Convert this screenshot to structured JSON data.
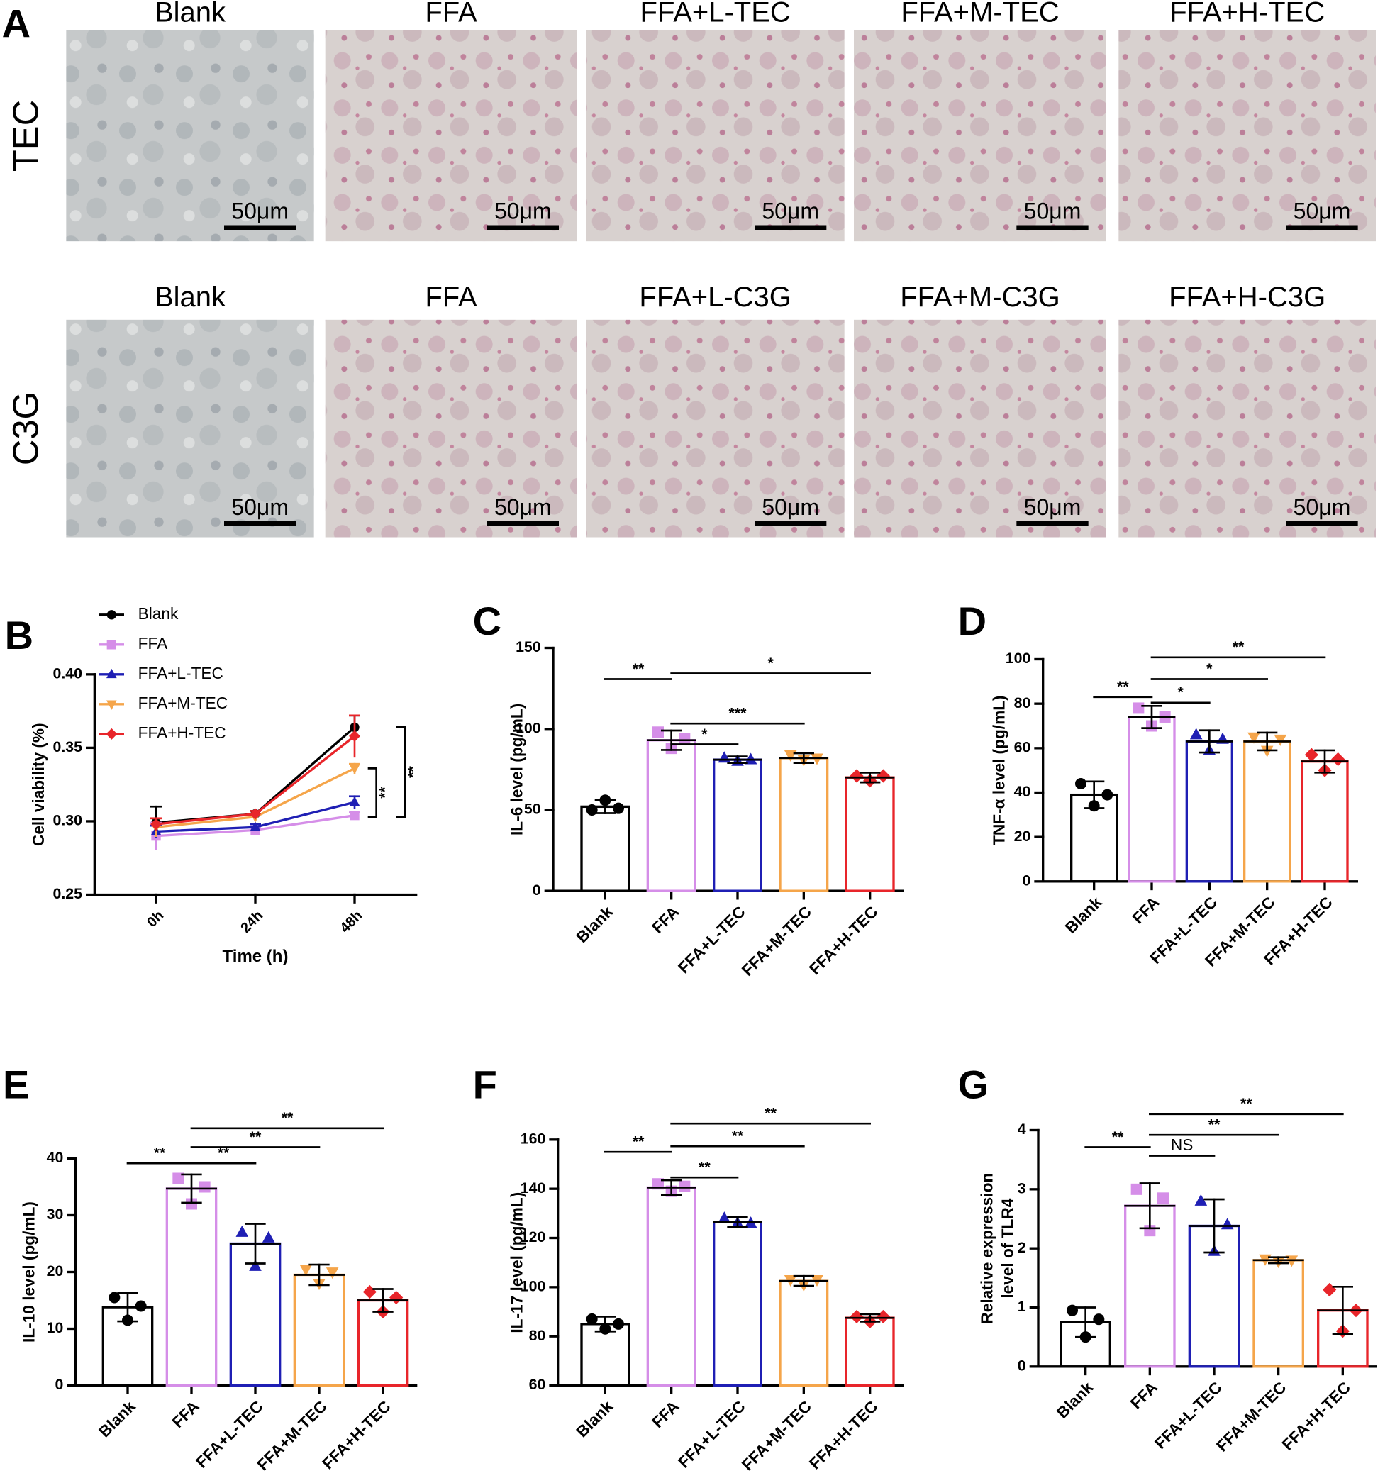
{
  "panel_a": {
    "label": "A",
    "scale_bar": "50μm",
    "rows": [
      {
        "name": "TEC",
        "columns": [
          "Blank",
          "FFA",
          "FFA+L-TEC",
          "FFA+M-TEC",
          "FFA+H-TEC"
        ]
      },
      {
        "name": "C3G",
        "columns": [
          "Blank",
          "FFA",
          "FFA+L-C3G",
          "FFA+M-C3G",
          "FFA+H-C3G"
        ]
      }
    ]
  },
  "chart_data": [
    {
      "type": "line",
      "label": "B",
      "ylabel": [
        "Cell viability (%)"
      ],
      "xlabel": "Time (h)",
      "categories": [
        "0h",
        "24h",
        "48h"
      ],
      "ylim": [
        0.25,
        0.4
      ],
      "yticks": [
        {
          "value": 0.25,
          "label": "0.25"
        },
        {
          "value": 0.3,
          "label": "0.30"
        },
        {
          "value": 0.35,
          "label": "0.35"
        },
        {
          "value": 0.4,
          "label": "0.40"
        }
      ],
      "legend": "top-left",
      "series": [
        {
          "name": "Blank",
          "color": "#000000",
          "marker": "circle",
          "values": [
            0.299,
            0.305,
            0.364
          ],
          "errors": [
            0.011,
            0.002,
            0.008
          ]
        },
        {
          "name": "FFA",
          "color": "#d58ee8",
          "marker": "square",
          "values": [
            0.29,
            0.294,
            0.304
          ],
          "errors": [
            0.009,
            0.002,
            0.002
          ]
        },
        {
          "name": "FFA+L-TEC",
          "color": "#1f1fb4",
          "marker": "triangle",
          "values": [
            0.293,
            0.296,
            0.313
          ],
          "errors": [
            0.004,
            0.002,
            0.004
          ]
        },
        {
          "name": "FFA+M-TEC",
          "color": "#f5a54a",
          "marker": "triangle-down",
          "values": [
            0.296,
            0.303,
            0.336
          ],
          "errors": [
            0.006,
            0.002,
            0.003
          ]
        },
        {
          "name": "FFA+H-TEC",
          "color": "#e8252a",
          "marker": "diamond",
          "values": [
            0.298,
            0.305,
            0.358
          ],
          "errors": [
            0.004,
            0.002,
            0.014
          ]
        }
      ],
      "brackets": [
        {
          "label": "**",
          "range": [
            0.303,
            0.336
          ]
        },
        {
          "label": "**",
          "range": [
            0.303,
            0.364
          ]
        }
      ]
    },
    {
      "type": "bar",
      "label": "C",
      "ylabel": [
        "IL-6 level (pg/mL)"
      ],
      "categories": [
        "Blank",
        "FFA",
        "FFA+L-TEC",
        "FFA+M-TEC",
        "FFA+H-TEC"
      ],
      "colors": [
        "#000000",
        "#d58ee8",
        "#1f1fb4",
        "#f5a54a",
        "#e8252a"
      ],
      "markers": [
        "circle",
        "square",
        "triangle",
        "triangle-down",
        "diamond"
      ],
      "ylim": [
        0,
        150
      ],
      "yticks": [
        0,
        50,
        100,
        150
      ],
      "values": [
        52,
        93,
        81,
        82,
        70
      ],
      "errors": [
        4,
        6,
        2,
        3,
        3
      ],
      "points": [
        [
          50,
          56,
          51
        ],
        [
          98,
          88,
          94
        ],
        [
          82,
          80,
          81
        ],
        [
          84,
          81,
          82
        ],
        [
          71,
          68,
          71
        ]
      ],
      "significance": [
        {
          "label": "**",
          "from": "Blank",
          "to": "FFA"
        },
        {
          "label": "*",
          "from": "FFA",
          "to": "FFA+L-TEC"
        },
        {
          "label": "***",
          "from": "FFA",
          "to": "FFA+M-TEC"
        },
        {
          "label": "*",
          "from": "FFA",
          "to": "FFA+H-TEC"
        }
      ]
    },
    {
      "type": "bar",
      "label": "D",
      "ylabel": [
        "TNF-α level (pg/mL)"
      ],
      "categories": [
        "Blank",
        "FFA",
        "FFA+L-TEC",
        "FFA+M-TEC",
        "FFA+H-TEC"
      ],
      "colors": [
        "#000000",
        "#d58ee8",
        "#1f1fb4",
        "#f5a54a",
        "#e8252a"
      ],
      "markers": [
        "circle",
        "square",
        "triangle",
        "triangle-down",
        "diamond"
      ],
      "ylim": [
        0,
        100
      ],
      "yticks": [
        0,
        20,
        40,
        60,
        80,
        100
      ],
      "values": [
        39,
        74,
        63,
        63,
        54
      ],
      "errors": [
        6,
        5,
        5,
        4,
        5
      ],
      "points": [
        [
          44,
          34,
          39
        ],
        [
          78,
          70,
          74
        ],
        [
          66,
          59,
          64
        ],
        [
          65,
          59,
          64
        ],
        [
          57,
          50,
          55
        ]
      ],
      "significance": [
        {
          "label": "**",
          "from": "Blank",
          "to": "FFA"
        },
        {
          "label": "*",
          "from": "FFA",
          "to": "FFA+L-TEC"
        },
        {
          "label": "*",
          "from": "FFA",
          "to": "FFA+M-TEC"
        },
        {
          "label": "**",
          "from": "FFA",
          "to": "FFA+H-TEC"
        }
      ]
    },
    {
      "type": "bar",
      "label": "E",
      "ylabel": [
        "IL-10 level (pg/mL)"
      ],
      "categories": [
        "Blank",
        "FFA",
        "FFA+L-TEC",
        "FFA+M-TEC",
        "FFA+H-TEC"
      ],
      "colors": [
        "#000000",
        "#d58ee8",
        "#1f1fb4",
        "#f5a54a",
        "#e8252a"
      ],
      "markers": [
        "circle",
        "square",
        "triangle",
        "triangle-down",
        "diamond"
      ],
      "ylim": [
        0,
        40
      ],
      "yticks": [
        0,
        10,
        20,
        30,
        40
      ],
      "values": [
        13.8,
        34.7,
        25,
        19.5,
        15
      ],
      "errors": [
        2.5,
        2.5,
        3.5,
        1.8,
        2
      ],
      "points": [
        [
          15.5,
          11.5,
          14
        ],
        [
          36.5,
          32,
          35
        ],
        [
          27,
          21,
          26
        ],
        [
          20.5,
          18,
          20
        ],
        [
          16.5,
          13,
          15.5
        ]
      ],
      "significance": [
        {
          "label": "**",
          "from": "Blank",
          "to": "FFA"
        },
        {
          "label": "**",
          "from": "FFA",
          "to": "FFA+L-TEC"
        },
        {
          "label": "**",
          "from": "FFA",
          "to": "FFA+M-TEC"
        },
        {
          "label": "**",
          "from": "FFA",
          "to": "FFA+H-TEC"
        }
      ]
    },
    {
      "type": "bar",
      "label": "F",
      "ylabel": [
        "IL-17 level (pg/mL)"
      ],
      "categories": [
        "Blank",
        "FFA",
        "FFA+L-TEC",
        "FFA+M-TEC",
        "FFA+H-TEC"
      ],
      "colors": [
        "#000000",
        "#d58ee8",
        "#1f1fb4",
        "#f5a54a",
        "#e8252a"
      ],
      "markers": [
        "circle",
        "square",
        "triangle",
        "triangle-down",
        "diamond"
      ],
      "ylim": [
        60,
        160
      ],
      "yticks": [
        60,
        80,
        100,
        120,
        140,
        160
      ],
      "values": [
        85,
        140.5,
        126.5,
        102.5,
        87.5
      ],
      "errors": [
        3,
        3,
        2,
        2,
        1.5
      ],
      "points": [
        [
          87,
          83,
          85
        ],
        [
          142,
          139,
          141
        ],
        [
          128,
          126,
          126
        ],
        [
          103,
          101,
          103
        ],
        [
          88,
          86,
          88
        ]
      ],
      "significance": [
        {
          "label": "**",
          "from": "Blank",
          "to": "FFA"
        },
        {
          "label": "**",
          "from": "FFA",
          "to": "FFA+L-TEC"
        },
        {
          "label": "**",
          "from": "FFA",
          "to": "FFA+M-TEC"
        },
        {
          "label": "**",
          "from": "FFA",
          "to": "FFA+H-TEC"
        }
      ]
    },
    {
      "type": "bar",
      "label": "G",
      "ylabel": [
        "Relative expression",
        "level of TLR4"
      ],
      "categories": [
        "Blank",
        "FFA",
        "FFA+L-TEC",
        "FFA+M-TEC",
        "FFA+H-TEC"
      ],
      "colors": [
        "#000000",
        "#d58ee8",
        "#1f1fb4",
        "#f5a54a",
        "#e8252a"
      ],
      "markers": [
        "circle",
        "square",
        "triangle",
        "triangle-down",
        "diamond"
      ],
      "ylim": [
        0,
        4
      ],
      "yticks": [
        0,
        1,
        2,
        3,
        4
      ],
      "values": [
        0.75,
        2.72,
        2.38,
        1.8,
        0.95
      ],
      "errors": [
        0.25,
        0.38,
        0.45,
        0.05,
        0.4
      ],
      "points": [
        [
          0.95,
          0.5,
          0.8
        ],
        [
          3,
          2.3,
          2.85
        ],
        [
          2.8,
          1.95,
          2.4
        ],
        [
          1.82,
          1.78,
          1.8
        ],
        [
          1.3,
          0.6,
          0.95
        ]
      ],
      "significance": [
        {
          "label": "**",
          "from": "Blank",
          "to": "FFA"
        },
        {
          "label": "NS",
          "from": "FFA",
          "to": "FFA+L-TEC"
        },
        {
          "label": "**",
          "from": "FFA",
          "to": "FFA+M-TEC"
        },
        {
          "label": "**",
          "from": "FFA",
          "to": "FFA+H-TEC"
        }
      ]
    }
  ]
}
